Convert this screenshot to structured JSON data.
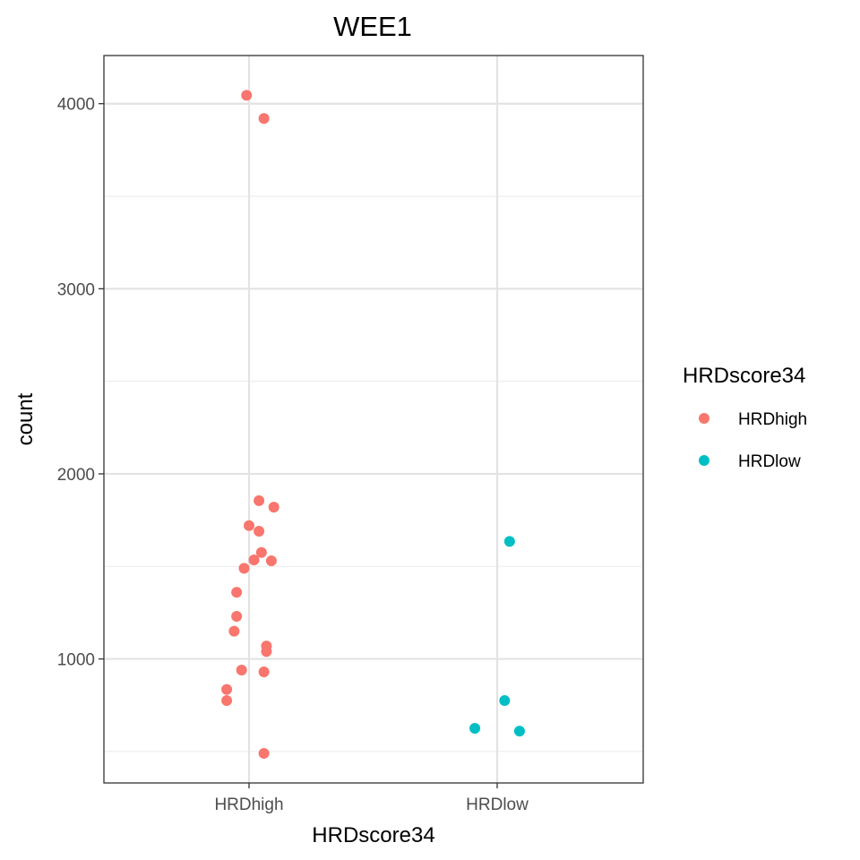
{
  "chart_data": {
    "type": "scatter",
    "title": "WEE1",
    "xlabel": "HRDscore34",
    "ylabel": "count",
    "categories": [
      "HRDhigh",
      "HRDlow"
    ],
    "ylim": [
      330,
      4260
    ],
    "y_ticks": [
      1000,
      2000,
      3000,
      4000
    ],
    "y_tick_labels": [
      "1000",
      "2000",
      "3000",
      "4000"
    ],
    "y_minor_ticks": [
      500,
      1500,
      2500,
      3500
    ],
    "grid": true,
    "legend": {
      "title": "HRDscore34",
      "placement": "right",
      "entries": [
        "HRDhigh",
        "HRDlow"
      ]
    },
    "series": [
      {
        "name": "HRDhigh",
        "color": "#F8766D",
        "points": [
          {
            "x": -0.01,
            "y": 4045
          },
          {
            "x": 0.06,
            "y": 3920
          },
          {
            "x": 0.04,
            "y": 1855
          },
          {
            "x": 0.1,
            "y": 1820
          },
          {
            "x": 0.0,
            "y": 1720
          },
          {
            "x": 0.04,
            "y": 1690
          },
          {
            "x": 0.05,
            "y": 1575
          },
          {
            "x": 0.02,
            "y": 1535
          },
          {
            "x": 0.09,
            "y": 1530
          },
          {
            "x": -0.02,
            "y": 1490
          },
          {
            "x": -0.05,
            "y": 1360
          },
          {
            "x": -0.05,
            "y": 1230
          },
          {
            "x": -0.06,
            "y": 1150
          },
          {
            "x": 0.07,
            "y": 1070
          },
          {
            "x": 0.07,
            "y": 1040
          },
          {
            "x": -0.03,
            "y": 940
          },
          {
            "x": 0.06,
            "y": 930
          },
          {
            "x": -0.09,
            "y": 835
          },
          {
            "x": -0.09,
            "y": 775
          },
          {
            "x": 0.06,
            "y": 490
          }
        ]
      },
      {
        "name": "HRDlow",
        "color": "#00BFC4",
        "points": [
          {
            "x": 1.05,
            "y": 1635
          },
          {
            "x": 1.03,
            "y": 775
          },
          {
            "x": 0.91,
            "y": 625
          },
          {
            "x": 1.09,
            "y": 610
          }
        ]
      }
    ]
  }
}
